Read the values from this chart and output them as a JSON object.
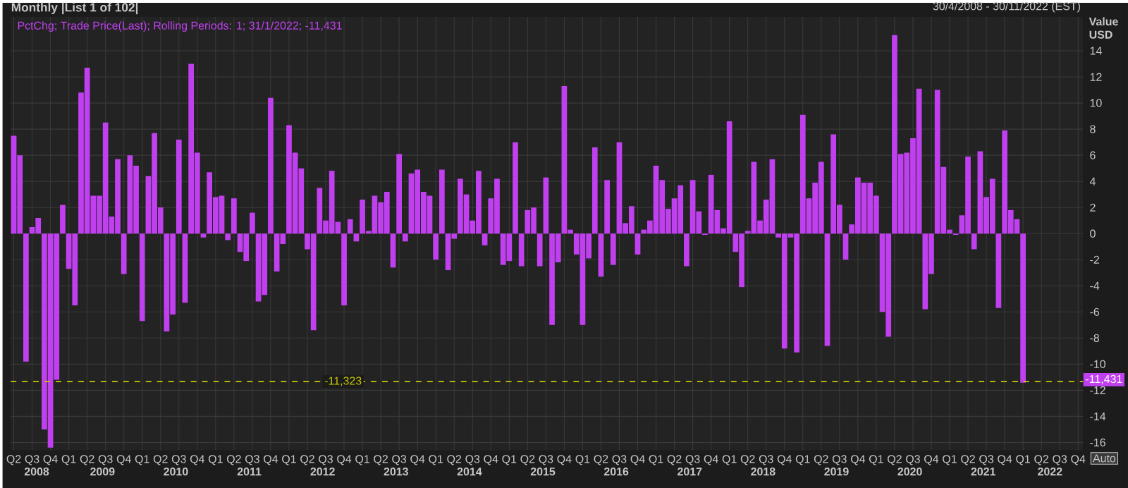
{
  "chart_data": {
    "type": "bar",
    "title": "Monthly |List 1 of 102|",
    "ylabel": "Value USD",
    "annotations": [
      "30/4/2008 - 30/11/2022 (EST)",
      "Auto",
      "-11,431",
      "2008",
      "2009",
      "2010",
      "2011",
      "2012",
      "2013",
      "2014",
      "2015",
      "2016",
      "2017",
      "2018",
      "2019",
      "2020",
      "2021",
      "2022"
    ],
    "x": [
      "2008-04",
      "2008-05",
      "2008-06",
      "2008-07",
      "2008-08",
      "2008-09",
      "2008-10",
      "2008-11",
      "2008-12",
      "2009-01",
      "2009-02",
      "2009-03",
      "2009-04",
      "2009-05",
      "2009-06",
      "2009-07",
      "2009-08",
      "2009-09",
      "2009-10",
      "2009-11",
      "2009-12",
      "2010-01",
      "2010-02",
      "2010-03",
      "2010-04",
      "2010-05",
      "2010-06",
      "2010-07",
      "2010-08",
      "2010-09",
      "2010-10",
      "2010-11",
      "2010-12",
      "2011-01",
      "2011-02",
      "2011-03",
      "2011-04",
      "2011-05",
      "2011-06",
      "2011-07",
      "2011-08",
      "2011-09",
      "2011-10",
      "2011-11",
      "2011-12",
      "2012-01",
      "2012-02",
      "2012-03",
      "2012-04",
      "2012-05",
      "2012-06",
      "2012-07",
      "2012-08",
      "2012-09",
      "2012-10",
      "2012-11",
      "2012-12",
      "2013-01",
      "2013-02",
      "2013-03",
      "2013-04",
      "2013-05",
      "2013-06",
      "2013-07",
      "2013-08",
      "2013-09",
      "2013-10",
      "2013-11",
      "2013-12",
      "2014-01",
      "2014-02",
      "2014-03",
      "2014-04",
      "2014-05",
      "2014-06",
      "2014-07",
      "2014-08",
      "2014-09",
      "2014-10",
      "2014-11",
      "2014-12",
      "2015-01",
      "2015-02",
      "2015-03",
      "2015-04",
      "2015-05",
      "2015-06",
      "2015-07",
      "2015-08",
      "2015-09",
      "2015-10",
      "2015-11",
      "2015-12",
      "2016-01",
      "2016-02",
      "2016-03",
      "2016-04",
      "2016-05",
      "2016-06",
      "2016-07",
      "2016-08",
      "2016-09",
      "2016-10",
      "2016-11",
      "2016-12",
      "2017-01",
      "2017-02",
      "2017-03",
      "2017-04",
      "2017-05",
      "2017-06",
      "2017-07",
      "2017-08",
      "2017-09",
      "2017-10",
      "2017-11",
      "2017-12",
      "2018-01",
      "2018-02",
      "2018-03",
      "2018-04",
      "2018-05",
      "2018-06",
      "2018-07",
      "2018-08",
      "2018-09",
      "2018-10",
      "2018-11",
      "2018-12",
      "2019-01",
      "2019-02",
      "2019-03",
      "2019-04",
      "2019-05",
      "2019-06",
      "2019-07",
      "2019-08",
      "2019-09",
      "2019-10",
      "2019-11",
      "2019-12",
      "2020-01",
      "2020-02",
      "2020-03",
      "2020-04",
      "2020-05",
      "2020-06",
      "2020-07",
      "2020-08",
      "2020-09",
      "2020-10",
      "2020-11",
      "2020-12",
      "2021-01",
      "2021-02",
      "2021-03",
      "2021-04",
      "2021-05",
      "2021-06",
      "2021-07",
      "2021-08",
      "2021-09",
      "2021-10",
      "2021-11",
      "2021-12",
      "2022-01"
    ],
    "series": [
      {
        "name": "PctChg; Trade Price(Last); Rolling Periods: 1; 31/1/2022; -11,431",
        "color": "#c040f0",
        "values": [
          7.5,
          6.0,
          -9.8,
          0.5,
          1.2,
          -15.0,
          -16.4,
          -11.2,
          2.2,
          -2.7,
          -5.5,
          10.8,
          12.7,
          2.9,
          2.9,
          8.5,
          1.3,
          5.7,
          -3.1,
          6.0,
          5.2,
          -6.7,
          4.4,
          7.7,
          2.0,
          -7.5,
          -6.2,
          7.2,
          -5.3,
          13.0,
          6.2,
          -0.3,
          4.7,
          2.8,
          2.9,
          -0.5,
          2.7,
          -1.4,
          -2.1,
          1.6,
          -5.2,
          -4.7,
          10.4,
          -2.9,
          -0.8,
          8.3,
          6.2,
          5.0,
          -1.2,
          -7.4,
          3.5,
          1.0,
          4.8,
          0.9,
          -5.5,
          1.1,
          -0.6,
          2.6,
          0.2,
          2.9,
          2.4,
          3.2,
          -2.6,
          6.1,
          -0.6,
          4.6,
          4.9,
          3.2,
          2.9,
          -2.0,
          4.9,
          -2.8,
          -0.4,
          4.2,
          3.0,
          1.0,
          4.8,
          -0.9,
          2.7,
          4.2,
          -2.4,
          -2.1,
          7.0,
          -2.5,
          1.8,
          2.0,
          -2.5,
          4.3,
          -7.0,
          -2.2,
          11.3,
          0.3,
          -1.6,
          -7.0,
          -1.9,
          6.6,
          -3.3,
          4.1,
          -2.4,
          7.0,
          0.8,
          2.1,
          -1.6,
          0.3,
          1.0,
          5.2,
          4.1,
          1.9,
          2.7,
          3.7,
          -2.5,
          4.1,
          1.7,
          -0.1,
          4.5,
          1.8,
          0.4,
          8.6,
          -1.4,
          -4.1,
          0.2,
          5.5,
          1.0,
          2.6,
          5.7,
          -0.3,
          -8.8,
          -0.3,
          -9.1,
          9.1,
          2.7,
          3.9,
          5.5,
          -8.6,
          7.6,
          2.2,
          -2.0,
          0.7,
          4.3,
          3.9,
          3.9,
          2.9,
          -6.0,
          -7.9,
          15.2,
          6.1,
          6.2,
          7.3,
          11.1,
          -5.8,
          -3.1,
          11.0,
          5.1,
          0.3,
          -0.1,
          1.4,
          5.9,
          -1.2,
          6.3,
          2.8,
          4.2,
          -5.7,
          7.9,
          1.8,
          1.1,
          -11.431
        ],
        "value_labels": [
          null,
          null,
          null,
          null,
          null,
          null,
          null,
          null,
          null,
          null,
          null,
          null,
          null,
          null,
          null,
          null,
          null,
          null,
          null,
          null,
          null,
          null,
          null,
          null,
          null,
          null,
          null,
          null,
          null,
          null,
          null,
          null,
          null,
          null,
          null,
          null,
          null,
          null,
          null,
          null,
          null,
          null,
          null,
          null,
          null,
          null,
          null,
          null,
          null,
          null,
          null,
          null,
          null,
          null,
          null,
          null,
          null,
          null,
          null,
          null,
          null,
          null,
          null,
          null,
          null,
          null,
          null,
          null,
          null,
          null,
          null,
          null,
          null,
          null,
          null,
          null,
          null,
          null,
          null,
          null,
          null,
          null,
          null,
          null,
          null,
          null,
          null,
          null,
          null,
          null,
          null,
          null,
          null,
          null,
          null,
          null,
          null,
          null,
          null,
          null,
          null,
          null,
          null,
          null,
          null,
          null,
          null,
          null,
          null,
          null,
          null,
          null,
          null,
          null,
          null,
          null,
          null,
          null,
          null,
          null,
          null,
          null,
          null,
          null,
          null,
          null,
          null,
          null,
          null,
          null,
          null,
          null,
          null,
          null,
          null,
          null,
          null,
          null,
          null,
          null,
          null,
          null,
          null,
          null,
          null,
          null,
          null,
          null,
          null,
          null,
          null,
          null,
          null,
          null,
          null,
          null,
          null,
          null,
          null,
          null,
          null,
          null,
          null,
          null,
          null,
          null
        ]
      }
    ],
    "xlim": [
      "2008-03-16",
      "2022-10-25"
    ],
    "xticks": [
      {
        "value": "2008-04",
        "label": "Q2"
      },
      {
        "value": "2008-07",
        "label": "Q3"
      },
      {
        "value": "2008-10",
        "label": "Q4"
      },
      {
        "value": "2009-01",
        "label": "Q1"
      },
      {
        "value": "2009-04",
        "label": "Q2"
      },
      {
        "value": "2009-07",
        "label": "Q3"
      },
      {
        "value": "2009-10",
        "label": "Q4"
      },
      {
        "value": "2010-01",
        "label": "Q1"
      },
      {
        "value": "2010-04",
        "label": "Q2"
      },
      {
        "value": "2010-07",
        "label": "Q3"
      },
      {
        "value": "2010-10",
        "label": "Q4"
      },
      {
        "value": "2011-01",
        "label": "Q1"
      },
      {
        "value": "2011-04",
        "label": "Q2"
      },
      {
        "value": "2011-07",
        "label": "Q3"
      },
      {
        "value": "2011-10",
        "label": "Q4"
      },
      {
        "value": "2012-01",
        "label": "Q1"
      },
      {
        "value": "2012-04",
        "label": "Q2"
      },
      {
        "value": "2012-07",
        "label": "Q3"
      },
      {
        "value": "2012-10",
        "label": "Q4"
      },
      {
        "value": "2013-01",
        "label": "Q1"
      },
      {
        "value": "2013-04",
        "label": "Q2"
      },
      {
        "value": "2013-07",
        "label": "Q3"
      },
      {
        "value": "2013-10",
        "label": "Q4"
      },
      {
        "value": "2014-01",
        "label": "Q1"
      },
      {
        "value": "2014-04",
        "label": "Q2"
      },
      {
        "value": "2014-07",
        "label": "Q3"
      },
      {
        "value": "2014-10",
        "label": "Q4"
      },
      {
        "value": "2015-01",
        "label": "Q1"
      },
      {
        "value": "2015-04",
        "label": "Q2"
      },
      {
        "value": "2015-07",
        "label": "Q3"
      },
      {
        "value": "2015-10",
        "label": "Q4"
      },
      {
        "value": "2016-01",
        "label": "Q1"
      },
      {
        "value": "2016-04",
        "label": "Q2"
      },
      {
        "value": "2016-07",
        "label": "Q3"
      },
      {
        "value": "2016-10",
        "label": "Q4"
      },
      {
        "value": "2017-01",
        "label": "Q1"
      },
      {
        "value": "2017-04",
        "label": "Q2"
      },
      {
        "value": "2017-07",
        "label": "Q3"
      },
      {
        "value": "2017-10",
        "label": "Q4"
      },
      {
        "value": "2018-01",
        "label": "Q1"
      },
      {
        "value": "2018-04",
        "label": "Q2"
      },
      {
        "value": "2018-07",
        "label": "Q3"
      },
      {
        "value": "2018-10",
        "label": "Q4"
      },
      {
        "value": "2019-01",
        "label": "Q1"
      },
      {
        "value": "2019-04",
        "label": "Q2"
      },
      {
        "value": "2019-07",
        "label": "Q3"
      },
      {
        "value": "2019-10",
        "label": "Q4"
      },
      {
        "value": "2020-01",
        "label": "Q1"
      },
      {
        "value": "2020-04",
        "label": "Q2"
      },
      {
        "value": "2020-07",
        "label": "Q3"
      },
      {
        "value": "2020-10",
        "label": "Q4"
      },
      {
        "value": "2021-01",
        "label": "Q1"
      },
      {
        "value": "2021-04",
        "label": "Q2"
      },
      {
        "value": "2021-07",
        "label": "Q3"
      },
      {
        "value": "2021-10",
        "label": "Q4"
      },
      {
        "value": "2022-01",
        "label": "Q1"
      },
      {
        "value": "2022-04",
        "label": "Q2"
      },
      {
        "value": "2022-07",
        "label": "Q3"
      },
      {
        "value": "2022-10",
        "label": "Q4"
      }
    ],
    "ylim": [
      -16.6,
      16.6
    ],
    "yticks": [
      -16,
      -14,
      -12,
      -10,
      -8,
      -6,
      -4,
      -2,
      0,
      2,
      4,
      6,
      8,
      10,
      12,
      14
    ],
    "ref_lines": [
      {
        "axis": "y",
        "value": -11.323,
        "label": "-11,323",
        "color": "#c8c800",
        "line_style": "dashed"
      }
    ],
    "grid": true,
    "legend": "top left"
  }
}
